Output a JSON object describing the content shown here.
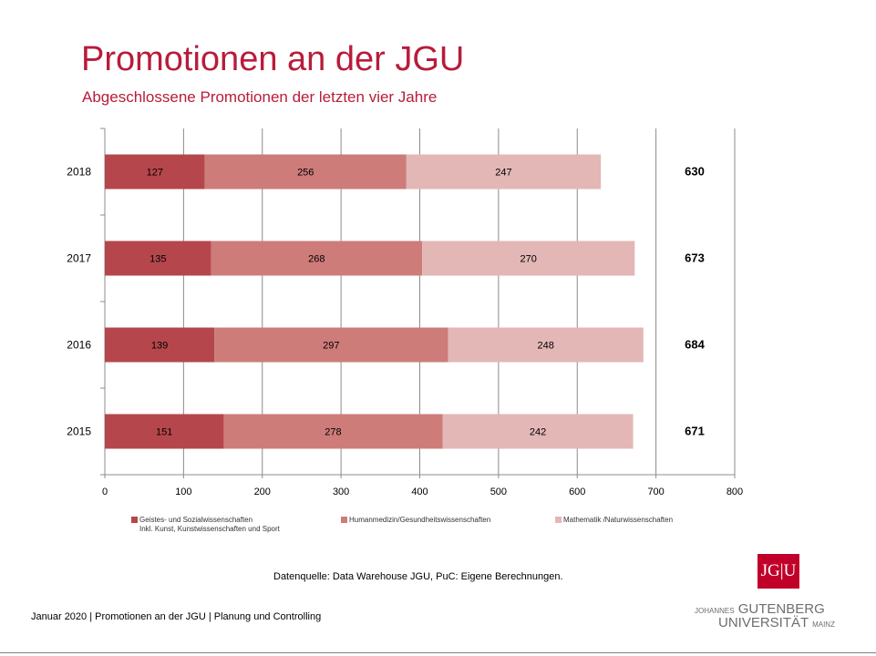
{
  "slide": {
    "title": "Promotionen an der JGU",
    "subtitle": "Abgeschlossene Promotionen der letzten vier Jahre",
    "source": "Datenquelle: Data Warehouse JGU, PuC: Eigene Berechnungen.",
    "footer": "Januar 2020 | Promotionen an der JGU | Planung und Controlling"
  },
  "logo": {
    "mark_left": "JG",
    "mark_divider": "|",
    "mark_right": "U",
    "line1_small": "JOHANNES",
    "line1_large": "GUTENBERG",
    "line2_large": "UNIVERSITÄT",
    "line2_small": "MAINZ",
    "color": "#c1002a"
  },
  "legend": [
    {
      "label": "Geistes- und Sozialwissenschaften",
      "sub": "Inkl. Kunst, Kunstwissenschaften und Sport",
      "color": "#b5474c"
    },
    {
      "label": "Humanmedizin/Gesundheitswissenschaften",
      "sub": "",
      "color": "#cd7c7a"
    },
    {
      "label": "Mathematik /Naturwissenschaften",
      "sub": "",
      "color": "#e2b7b6"
    }
  ],
  "chart_data": {
    "type": "bar",
    "orientation": "horizontal",
    "stacked": true,
    "title": "Promotionen an der JGU",
    "subtitle": "Abgeschlossene Promotionen der letzten vier Jahre",
    "categories": [
      "2018",
      "2017",
      "2016",
      "2015"
    ],
    "series": [
      {
        "name": "Geistes- und Sozialwissenschaften Inkl. Kunst, Kunstwissenschaften und Sport",
        "values": [
          127,
          135,
          139,
          151
        ],
        "color": "#b5474c"
      },
      {
        "name": "Humanmedizin/Gesundheitswissenschaften",
        "values": [
          256,
          268,
          297,
          278
        ],
        "color": "#cd7c7a"
      },
      {
        "name": "Mathematik /Naturwissenschaften",
        "values": [
          247,
          270,
          248,
          242
        ],
        "color": "#e2b7b6"
      }
    ],
    "totals": [
      630,
      673,
      684,
      671
    ],
    "xlim": [
      0,
      800
    ],
    "xticks": [
      0,
      100,
      200,
      300,
      400,
      500,
      600,
      700,
      800
    ],
    "grid": true,
    "legend_position": "bottom"
  }
}
